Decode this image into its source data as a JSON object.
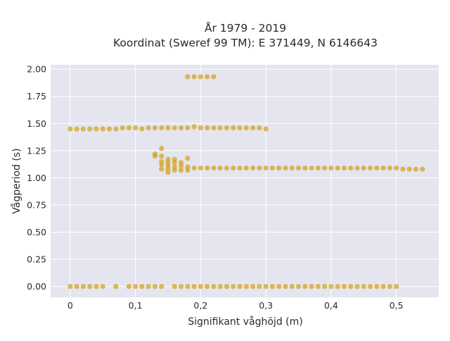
{
  "chart_data": {
    "type": "scatter",
    "title": "År 1979 - 2019",
    "subtitle": "Koordinat (Sweref 99 TM): E 371449, N 6146643",
    "xlabel": "Signifikant våghöjd (m)",
    "ylabel": "Vågperiod (s)",
    "xlim": [
      -0.03,
      0.565
    ],
    "ylim": [
      -0.1,
      2.04
    ],
    "x_ticks": [
      0,
      0.1,
      0.2,
      0.3,
      0.4,
      0.5
    ],
    "x_tick_labels": [
      "0",
      "0,1",
      "0,2",
      "0,3",
      "0,4",
      "0,5"
    ],
    "y_ticks": [
      0,
      0.25,
      0.5,
      0.75,
      1.0,
      1.25,
      1.5,
      1.75,
      2.0
    ],
    "y_tick_labels": [
      "0.00",
      "0.25",
      "0.50",
      "0.75",
      "1.00",
      "1.25",
      "1.50",
      "1.75",
      "2.00"
    ],
    "grid": true,
    "marker_color": "#d4a017",
    "plot_background": "#e5e5ef",
    "series": [
      {
        "points": [
          [
            0,
            0
          ],
          [
            0.01,
            0
          ],
          [
            0.02,
            0
          ],
          [
            0.03,
            0
          ],
          [
            0.04,
            0
          ],
          [
            0.05,
            0
          ],
          [
            0.07,
            0
          ],
          [
            0.09,
            0
          ],
          [
            0.1,
            0
          ],
          [
            0.11,
            0
          ],
          [
            0.12,
            0
          ],
          [
            0.13,
            0
          ],
          [
            0.14,
            0
          ],
          [
            0.16,
            0
          ],
          [
            0.17,
            0
          ],
          [
            0.18,
            0
          ],
          [
            0.19,
            0
          ],
          [
            0.2,
            0
          ],
          [
            0.21,
            0
          ],
          [
            0.22,
            0
          ],
          [
            0.23,
            0
          ],
          [
            0.24,
            0
          ],
          [
            0.25,
            0
          ],
          [
            0.26,
            0
          ],
          [
            0.27,
            0
          ],
          [
            0.28,
            0
          ],
          [
            0.29,
            0
          ],
          [
            0.3,
            0
          ],
          [
            0.31,
            0
          ],
          [
            0.32,
            0
          ],
          [
            0.33,
            0
          ],
          [
            0.34,
            0
          ],
          [
            0.35,
            0
          ],
          [
            0.36,
            0
          ],
          [
            0.37,
            0
          ],
          [
            0.38,
            0
          ],
          [
            0.39,
            0
          ],
          [
            0.4,
            0
          ],
          [
            0.41,
            0
          ],
          [
            0.42,
            0
          ],
          [
            0.43,
            0
          ],
          [
            0.44,
            0
          ],
          [
            0.45,
            0
          ],
          [
            0.46,
            0
          ],
          [
            0.47,
            0
          ],
          [
            0.48,
            0
          ],
          [
            0.49,
            0
          ],
          [
            0.5,
            0
          ],
          [
            0,
            1.45
          ],
          [
            0.01,
            1.45
          ],
          [
            0.02,
            1.45
          ],
          [
            0.03,
            1.45
          ],
          [
            0.04,
            1.45
          ],
          [
            0.05,
            1.45
          ],
          [
            0.06,
            1.45
          ],
          [
            0.07,
            1.45
          ],
          [
            0.08,
            1.46
          ],
          [
            0.09,
            1.46
          ],
          [
            0.1,
            1.46
          ],
          [
            0.11,
            1.45
          ],
          [
            0.12,
            1.46
          ],
          [
            0.13,
            1.46
          ],
          [
            0.14,
            1.46
          ],
          [
            0.15,
            1.46
          ],
          [
            0.16,
            1.46
          ],
          [
            0.17,
            1.46
          ],
          [
            0.18,
            1.46
          ],
          [
            0.19,
            1.47
          ],
          [
            0.2,
            1.46
          ],
          [
            0.21,
            1.46
          ],
          [
            0.22,
            1.46
          ],
          [
            0.23,
            1.46
          ],
          [
            0.24,
            1.46
          ],
          [
            0.25,
            1.46
          ],
          [
            0.26,
            1.46
          ],
          [
            0.27,
            1.46
          ],
          [
            0.28,
            1.46
          ],
          [
            0.29,
            1.46
          ],
          [
            0.3,
            1.45
          ],
          [
            0.18,
            1.93
          ],
          [
            0.19,
            1.93
          ],
          [
            0.2,
            1.93
          ],
          [
            0.21,
            1.93
          ],
          [
            0.22,
            1.93
          ],
          [
            0.13,
            1.22
          ],
          [
            0.13,
            1.2
          ],
          [
            0.14,
            1.27
          ],
          [
            0.14,
            1.2
          ],
          [
            0.14,
            1.15
          ],
          [
            0.14,
            1.12
          ],
          [
            0.14,
            1.08
          ],
          [
            0.15,
            1.17
          ],
          [
            0.15,
            1.14
          ],
          [
            0.15,
            1.11
          ],
          [
            0.15,
            1.08
          ],
          [
            0.15,
            1.05
          ],
          [
            0.16,
            1.17
          ],
          [
            0.16,
            1.14
          ],
          [
            0.16,
            1.1
          ],
          [
            0.16,
            1.07
          ],
          [
            0.17,
            1.14
          ],
          [
            0.17,
            1.11
          ],
          [
            0.17,
            1.07
          ],
          [
            0.18,
            1.18
          ],
          [
            0.18,
            1.1
          ],
          [
            0.18,
            1.07
          ],
          [
            0.19,
            1.09
          ],
          [
            0.2,
            1.09
          ],
          [
            0.21,
            1.09
          ],
          [
            0.22,
            1.09
          ],
          [
            0.23,
            1.09
          ],
          [
            0.24,
            1.09
          ],
          [
            0.25,
            1.09
          ],
          [
            0.26,
            1.09
          ],
          [
            0.27,
            1.09
          ],
          [
            0.28,
            1.09
          ],
          [
            0.29,
            1.09
          ],
          [
            0.3,
            1.09
          ],
          [
            0.31,
            1.09
          ],
          [
            0.32,
            1.09
          ],
          [
            0.33,
            1.09
          ],
          [
            0.34,
            1.09
          ],
          [
            0.35,
            1.09
          ],
          [
            0.36,
            1.09
          ],
          [
            0.37,
            1.09
          ],
          [
            0.38,
            1.09
          ],
          [
            0.39,
            1.09
          ],
          [
            0.4,
            1.09
          ],
          [
            0.41,
            1.09
          ],
          [
            0.42,
            1.09
          ],
          [
            0.43,
            1.09
          ],
          [
            0.44,
            1.09
          ],
          [
            0.45,
            1.09
          ],
          [
            0.46,
            1.09
          ],
          [
            0.47,
            1.09
          ],
          [
            0.48,
            1.09
          ],
          [
            0.49,
            1.09
          ],
          [
            0.5,
            1.09
          ],
          [
            0.51,
            1.08
          ],
          [
            0.52,
            1.08
          ],
          [
            0.53,
            1.08
          ],
          [
            0.54,
            1.08
          ]
        ]
      }
    ]
  }
}
